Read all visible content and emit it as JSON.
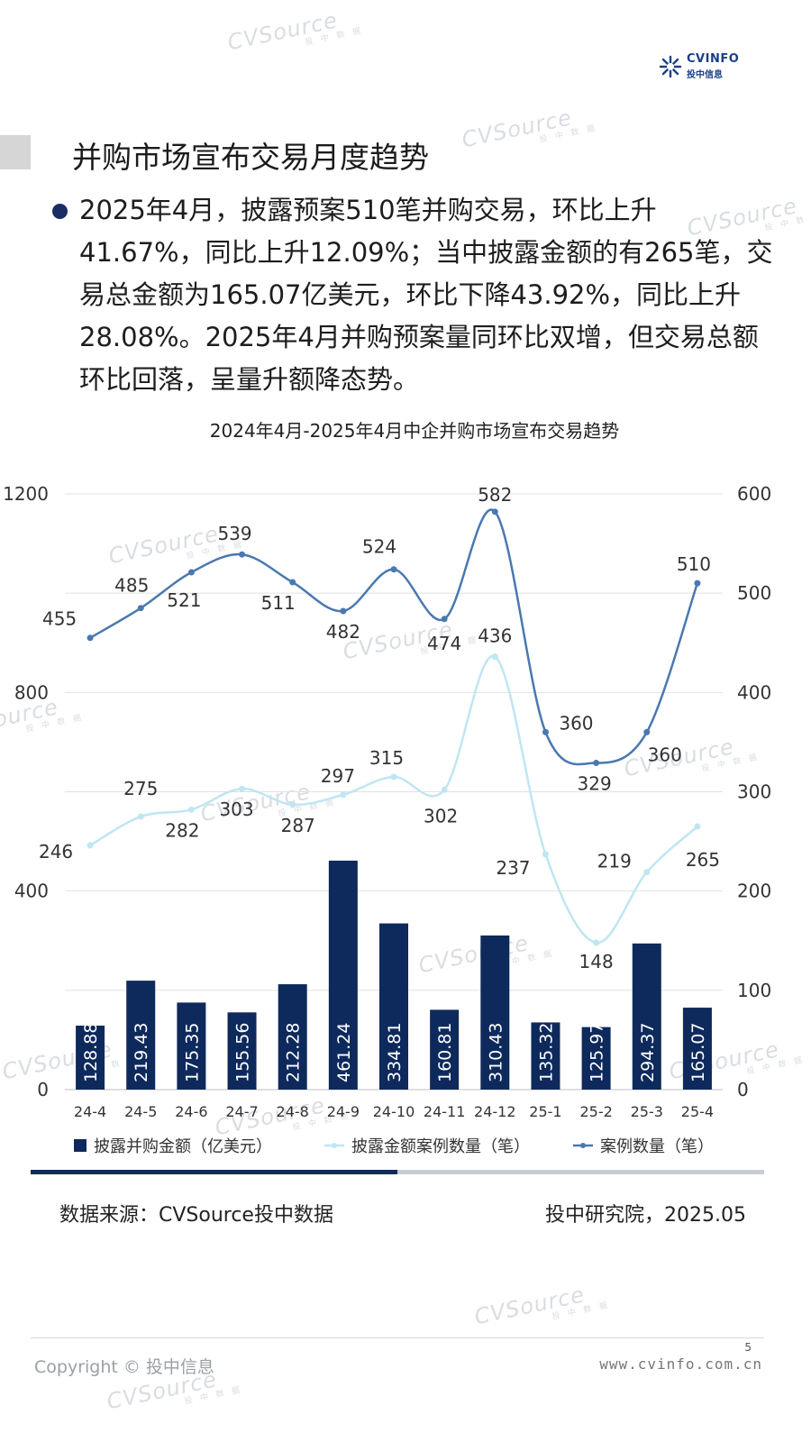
{
  "brand": {
    "logo_text": "CVINFO",
    "logo_subtext": "投中信息",
    "watermark_main": "CVSource",
    "watermark_sub": "投 中 数 据"
  },
  "page_title": "并购市场宣布交易月度趋势",
  "summary": "2025年4月，披露预案510笔并购交易，环比上升41.67%，同比上升12.09%；当中披露金额的有265笔，交易总金额为165.07亿美元，环比下降43.92%，同比上升28.08%。2025年4月并购预案量同环比双增，但交易总额环比回落，呈量升额降态势。",
  "chart_data": {
    "type": "bar",
    "title": "2024年4月-2025年4月中企并购市场宣布交易趋势",
    "categories": [
      "24-4",
      "24-5",
      "24-6",
      "24-7",
      "24-8",
      "24-9",
      "24-10",
      "24-11",
      "24-12",
      "25-1",
      "25-2",
      "25-3",
      "25-4"
    ],
    "left_axis": {
      "min": 0,
      "max": 1200,
      "ticks": [
        0,
        400,
        800,
        1200
      ]
    },
    "right_axis": {
      "min": 0,
      "max": 600,
      "ticks": [
        0,
        100,
        200,
        300,
        400,
        500,
        600
      ]
    },
    "grid": true,
    "legend_position": "bottom",
    "series": [
      {
        "name": "披露并购金额（亿美元）",
        "type": "bar",
        "axis": "left",
        "color": "#0e2a5c",
        "values": [
          128.88,
          219.43,
          175.35,
          155.56,
          212.28,
          461.24,
          334.81,
          160.81,
          310.43,
          135.32,
          125.97,
          294.37,
          165.07
        ],
        "labels": [
          "128.88",
          "219.43",
          "175.35",
          "155.56",
          "212.28",
          "461.24",
          "334.81",
          "160.81",
          "310.43",
          "135.32",
          "125.97",
          "294.37",
          "165.07"
        ]
      },
      {
        "name": "披露金额案例数量（笔）",
        "type": "line",
        "axis": "right",
        "color": "#bfe6f2",
        "values": [
          246,
          275,
          282,
          303,
          287,
          297,
          315,
          302,
          436,
          237,
          148,
          219,
          265
        ],
        "labels": [
          "246",
          "275",
          "282",
          "303",
          "287",
          "297",
          "315",
          "302",
          "436",
          "237",
          "148",
          "219",
          "265"
        ]
      },
      {
        "name": "案例数量（笔）",
        "type": "line",
        "axis": "right",
        "color": "#4a78b0",
        "values": [
          455,
          485,
          521,
          539,
          511,
          482,
          524,
          474,
          582,
          360,
          329,
          360,
          510
        ],
        "labels": [
          "455",
          "485",
          "521",
          "539",
          "511",
          "482",
          "524",
          "474",
          "582",
          "360",
          "329",
          "360",
          "510"
        ]
      }
    ]
  },
  "progress": {
    "fraction": 0.5
  },
  "source": "数据来源：CVSource投中数据",
  "credit": "投中研究院，2025.05",
  "page_number": "5",
  "copyright": "Copyright © 投中信息",
  "website": "www.cvinfo.com.cn"
}
